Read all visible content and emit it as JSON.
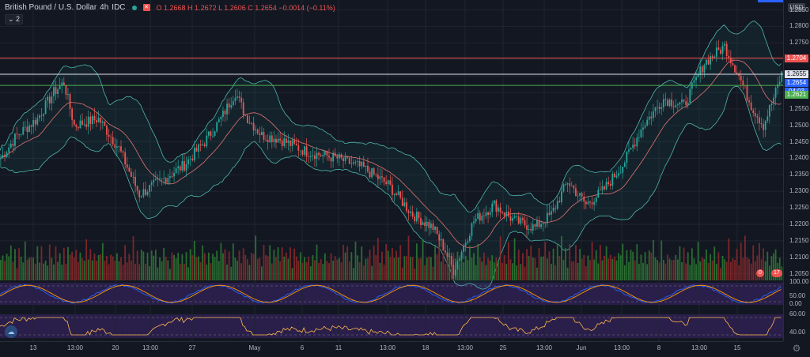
{
  "legend": {
    "symbol": "British Pound / U.S. Dollar",
    "interval": "4h",
    "source": "IDC",
    "ohlc": "O 1.2668  H 1.2672  L 1.2606  C 1.2654  −0.0014 (−0.11%)",
    "indicator_toggle": "2",
    "currency_badge": "USD"
  },
  "price_axis": {
    "ticks": [
      "1.2850",
      "1.2800",
      "1.2750",
      "1.2700",
      "1.2650",
      "1.2600",
      "1.2550",
      "1.2500",
      "1.2450",
      "1.2400",
      "1.2350",
      "1.2300",
      "1.2250",
      "1.2200",
      "1.2150",
      "1.2100",
      "1.2050"
    ],
    "tags": {
      "red_line": "1.2704",
      "white_line": "1.2655",
      "last_price": "1.2654",
      "countdown": "04:03",
      "green_line": "1.2621"
    },
    "osc1_ticks": [
      "100.00",
      "50.00",
      "0.00"
    ],
    "osc2_ticks": [
      "60.00",
      "40.00"
    ]
  },
  "time_axis": {
    "labels": [
      "13",
      "13:00",
      "20",
      "13:00",
      "27",
      "May",
      "6",
      "11",
      "13:00",
      "18",
      "13:00",
      "25",
      "13:00",
      "Jun",
      "13:00",
      "8",
      "13:00",
      "15"
    ]
  },
  "volume_badges": [
    "0",
    "17"
  ],
  "colors": {
    "up": "#26a69a",
    "down": "#ef5350",
    "accent": "#2962ff",
    "bb": "#4db6ac",
    "basis": "#e57373"
  },
  "chart_data": {
    "type": "candlestick",
    "title": "British Pound / U.S. Dollar",
    "interval": "4h",
    "ylim": [
      1.203,
      1.288
    ],
    "xlabels": [
      "13",
      "13:00",
      "20",
      "13:00",
      "27",
      "May",
      "6",
      "11",
      "13:00",
      "18",
      "13:00",
      "25",
      "13:00",
      "Jun",
      "13:00",
      "8",
      "13:00",
      "15"
    ],
    "horizontal_levels": [
      1.2704,
      1.2655,
      1.2621
    ],
    "anchors": [
      [
        0,
        1.24
      ],
      [
        8,
        1.247
      ],
      [
        18,
        1.252
      ],
      [
        26,
        1.26
      ],
      [
        31,
        1.263
      ],
      [
        36,
        1.25
      ],
      [
        48,
        1.252
      ],
      [
        58,
        1.243
      ],
      [
        68,
        1.229
      ],
      [
        78,
        1.233
      ],
      [
        90,
        1.238
      ],
      [
        100,
        1.245
      ],
      [
        108,
        1.252
      ],
      [
        115,
        1.26
      ],
      [
        120,
        1.253
      ],
      [
        128,
        1.247
      ],
      [
        136,
        1.246
      ],
      [
        150,
        1.242
      ],
      [
        165,
        1.24
      ],
      [
        178,
        1.237
      ],
      [
        190,
        1.232
      ],
      [
        202,
        1.223
      ],
      [
        212,
        1.219
      ],
      [
        218,
        1.212
      ],
      [
        222,
        1.206
      ],
      [
        232,
        1.221
      ],
      [
        242,
        1.226
      ],
      [
        252,
        1.221
      ],
      [
        262,
        1.219
      ],
      [
        270,
        1.223
      ],
      [
        278,
        1.233
      ],
      [
        287,
        1.226
      ],
      [
        295,
        1.23
      ],
      [
        305,
        1.238
      ],
      [
        315,
        1.25
      ],
      [
        325,
        1.258
      ],
      [
        335,
        1.256
      ],
      [
        345,
        1.269
      ],
      [
        355,
        1.274
      ],
      [
        362,
        1.265
      ],
      [
        368,
        1.256
      ],
      [
        374,
        1.25
      ],
      [
        380,
        1.26
      ],
      [
        383,
        1.2655
      ]
    ],
    "volume_levels": [
      0.55,
      0.75,
      0.45,
      0.8,
      0.6,
      0.95,
      0.5,
      0.7,
      0.4,
      0.85,
      0.65,
      0.55,
      0.9,
      0.5,
      0.7
    ]
  }
}
